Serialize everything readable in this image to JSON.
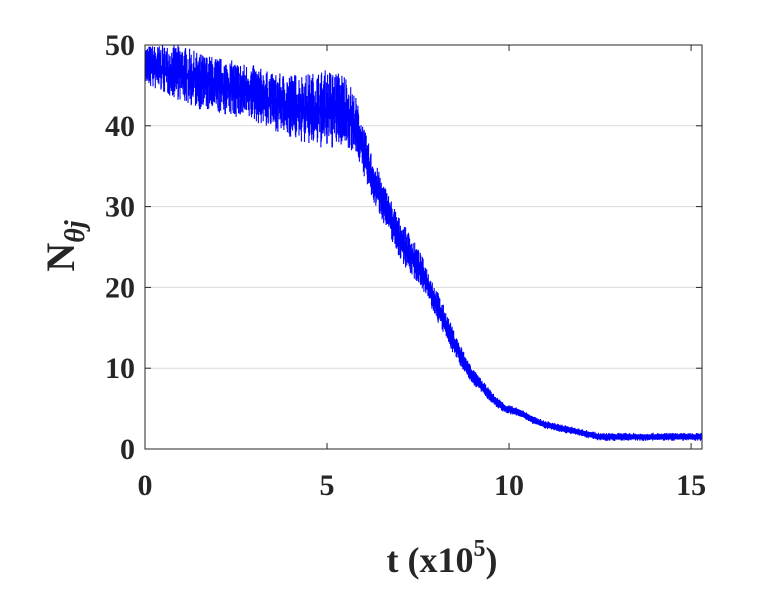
{
  "chart_data": {
    "type": "line",
    "title": "",
    "xlabel": "t (x10",
    "xlabel_exponent": "5",
    "xlabel_close": ")",
    "ylabel": "N",
    "ylabel_subscript": "θj",
    "xlim": [
      0,
      15.3
    ],
    "ylim": [
      0,
      50
    ],
    "xticks": [
      0,
      5,
      10,
      15
    ],
    "yticks": [
      0,
      10,
      20,
      30,
      40,
      50
    ],
    "xtick_labels": [
      "0",
      "5",
      "10",
      "15"
    ],
    "ytick_labels": [
      "0",
      "10",
      "20",
      "30",
      "40",
      "50"
    ],
    "grid": "horizontal",
    "legend": "none",
    "series": [
      {
        "color": "#0000ff",
        "x": [
          0,
          0.5,
          1,
          1.5,
          2,
          2.5,
          3,
          3.5,
          4,
          4.5,
          5,
          5.5,
          5.8,
          6,
          6.2,
          6.5,
          6.8,
          7,
          7.3,
          7.6,
          7.9,
          8.2,
          8.5,
          8.8,
          9,
          9.3,
          9.6,
          9.9,
          10.3,
          10.7,
          11,
          11.5,
          12,
          12.5,
          13,
          14,
          15.3
        ],
        "y": [
          47.5,
          47,
          46.5,
          45.5,
          45,
          44.5,
          44,
          43,
          42.5,
          42,
          42,
          42,
          40,
          37,
          34,
          31,
          28,
          26,
          24,
          22,
          19,
          16,
          13,
          10.5,
          9,
          7.5,
          6,
          5,
          4.5,
          3.5,
          3,
          2.5,
          2,
          1.5,
          1.5,
          1.5,
          1.5
        ],
        "band": [
          2.5,
          3,
          3.5,
          3.5,
          3.5,
          3.5,
          3.5,
          3.5,
          4,
          4.5,
          5,
          4.5,
          3.5,
          3,
          3,
          2.5,
          2.5,
          2.5,
          2.5,
          2,
          2,
          1.8,
          1.5,
          1.2,
          1,
          0.8,
          0.7,
          0.6,
          0.5,
          0.5,
          0.5,
          0.5,
          0.5,
          0.5,
          0.5,
          0.5,
          0.5
        ]
      }
    ],
    "line_color": "#0000ff",
    "grid_color": "#dcdcdc",
    "axis_color": "#262626"
  }
}
